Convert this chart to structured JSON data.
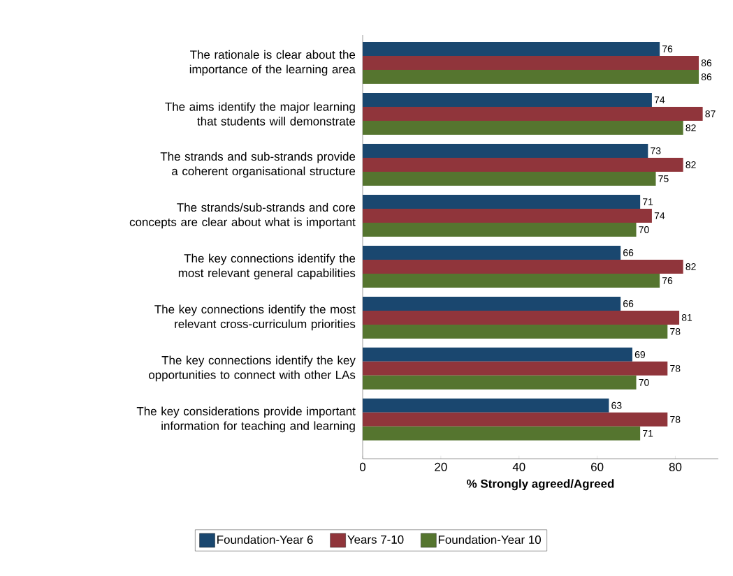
{
  "chart_data": {
    "type": "bar",
    "orientation": "horizontal",
    "categories": [
      "The rationale is clear about the importance of the learning area",
      "The aims identify the major learning that students will demonstrate",
      "The strands and sub-strands provide a coherent organisational structure",
      "The strands/sub-strands and core concepts are clear about what is important",
      "The key connections identify the most relevant general capabilities",
      "The key connections identify the most relevant cross-curriculum priorities",
      "The key connections identify the key opportunities to connect with other LAs",
      "The key considerations provide important information for teaching and learning"
    ],
    "series": [
      {
        "name": "Foundation-Year 6",
        "color": "#1a476f",
        "values": [
          76,
          74,
          73,
          71,
          66,
          66,
          69,
          63
        ]
      },
      {
        "name": "Years 7-10",
        "color": "#90353b",
        "values": [
          86,
          87,
          82,
          74,
          82,
          81,
          78,
          78
        ]
      },
      {
        "name": "Foundation-Year 10",
        "color": "#55752f",
        "values": [
          86,
          82,
          75,
          70,
          76,
          78,
          70,
          71
        ]
      }
    ],
    "xlabel": "% Strongly agreed/Agreed",
    "xlim": [
      0,
      91
    ],
    "xticks": [
      0,
      20,
      40,
      60,
      80
    ],
    "data_labels": true,
    "legend": "bottom",
    "grid": false
  }
}
